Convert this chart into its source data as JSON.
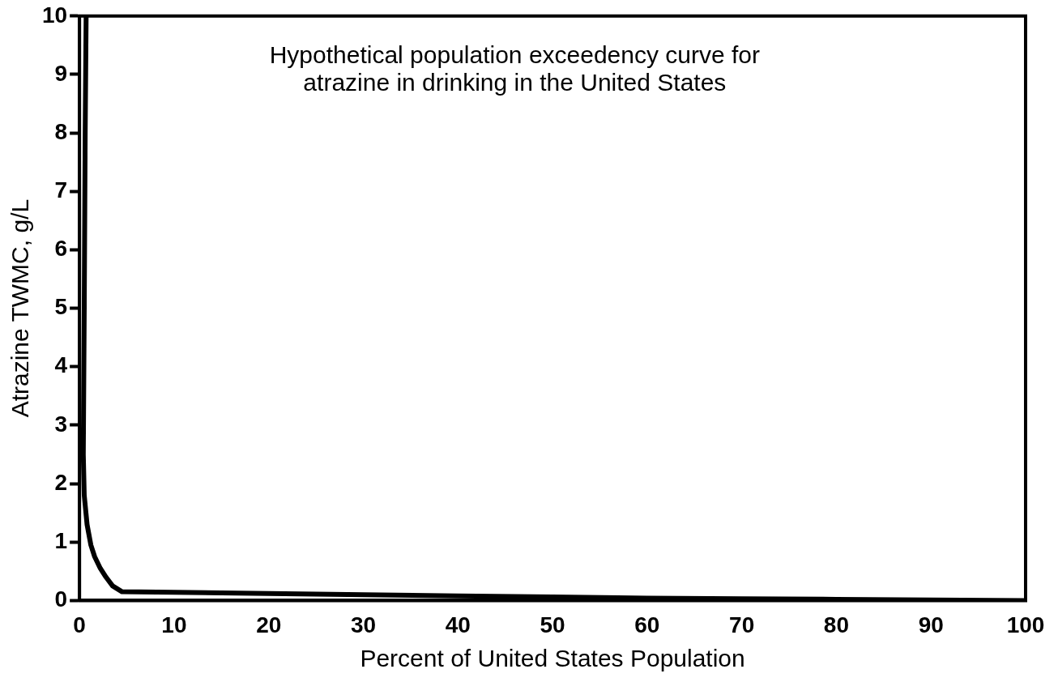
{
  "chart_data": {
    "type": "line",
    "title": "Hypothetical population exceedency curve for\natrazine in drinking in the United States",
    "xlabel": "Percent of United States Population",
    "ylabel": "Atrazine TWMC, g/L",
    "series": [
      {
        "color": "#000000",
        "x": [
          0.7,
          0.6,
          0.5,
          0.4,
          0.5,
          0.8,
          1.2,
          1.6,
          2.2,
          2.8,
          3.5,
          4.5,
          10,
          20,
          30,
          40,
          50,
          60,
          70,
          80,
          90,
          100
        ],
        "values": [
          10,
          8,
          5,
          2.5,
          1.8,
          1.3,
          0.95,
          0.75,
          0.55,
          0.4,
          0.25,
          0.15,
          0.14,
          0.12,
          0.1,
          0.08,
          0.06,
          0.04,
          0.03,
          0.02,
          0.01,
          0
        ]
      }
    ],
    "xlim": [
      0,
      100
    ],
    "xticks": [
      0,
      10,
      20,
      30,
      40,
      50,
      60,
      70,
      80,
      90,
      100
    ],
    "ylim": [
      0,
      10
    ],
    "yticks": [
      0,
      1,
      2,
      3,
      4,
      5,
      6,
      7,
      8,
      9,
      10
    ],
    "grid": false,
    "legend": false,
    "marker": "none",
    "line_style": "solid"
  }
}
